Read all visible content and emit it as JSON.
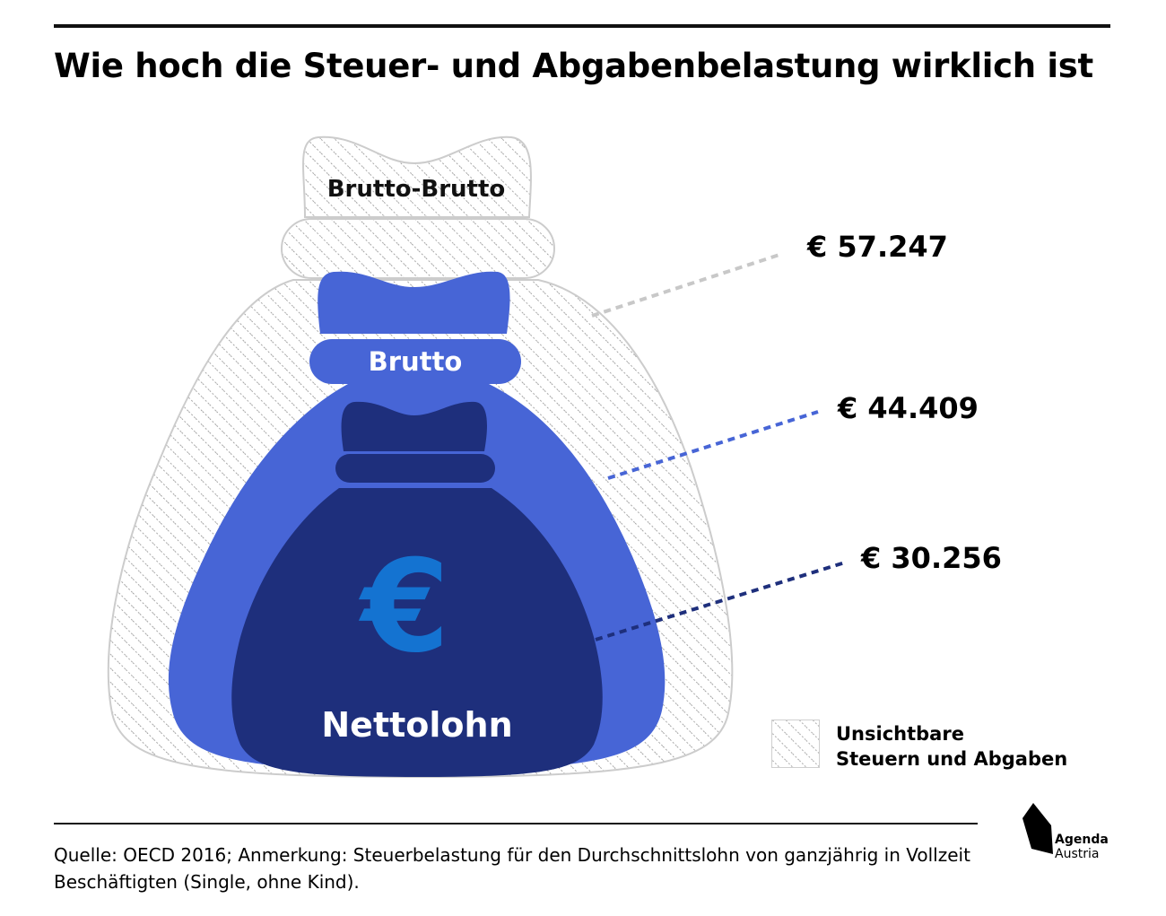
{
  "header": {
    "title": "Wie hoch die Steuer- und Abgabenbelastung wirklich ist"
  },
  "diagram": {
    "bags": [
      {
        "label": "Brutto-Brutto",
        "value": "€ 57.247",
        "style": "hatched"
      },
      {
        "label": "Brutto",
        "value": "€ 44.409",
        "color": "#4765d6"
      },
      {
        "label": "Nettolohn",
        "value": "€ 30.256",
        "color": "#1e2f7c"
      }
    ],
    "euro_symbol": "€",
    "euro_color": "#1473d1",
    "leader_colors": [
      "#c8c8c8",
      "#4765d6",
      "#1e2f7c"
    ]
  },
  "legend": {
    "line1": "Unsichtbare",
    "line2": "Steuern und Abgaben"
  },
  "footer": {
    "source": "Quelle: OECD 2016; Anmerkung: Steuerbelastung für den Durchschnittslohn von ganzjährig in Vollzeit Beschäftigten (Single, ohne Kind).",
    "logo_line1": "Agenda",
    "logo_line2": "Austria"
  }
}
